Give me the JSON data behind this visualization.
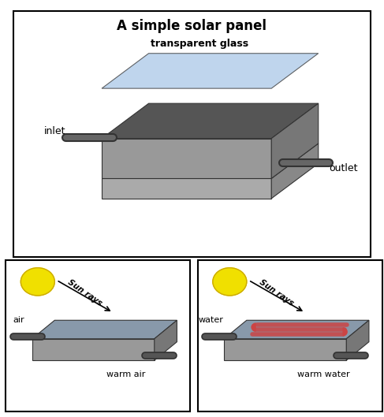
{
  "title_top": "A simple solar panel",
  "label_glass": "transparent glass",
  "label_inlet": "inlet",
  "label_outlet": "outlet",
  "label_air": "air",
  "label_warm_air": "warm air",
  "label_water": "water",
  "label_warm_water": "warm water",
  "label_sun_rays": "Sun rays",
  "color_glass": "#aac8e8",
  "color_glass_alpha": 0.7,
  "color_panel_top": "#555555",
  "color_panel_side": "#888888",
  "color_panel_front": "#777777",
  "color_sun": "#f0e000",
  "color_pipe": "#444444",
  "color_water_panel": "#8899aa",
  "color_coil": "#cc4444",
  "color_border": "#000000",
  "bg_color": "#ffffff",
  "bottom_bg": "#f5f5f5"
}
